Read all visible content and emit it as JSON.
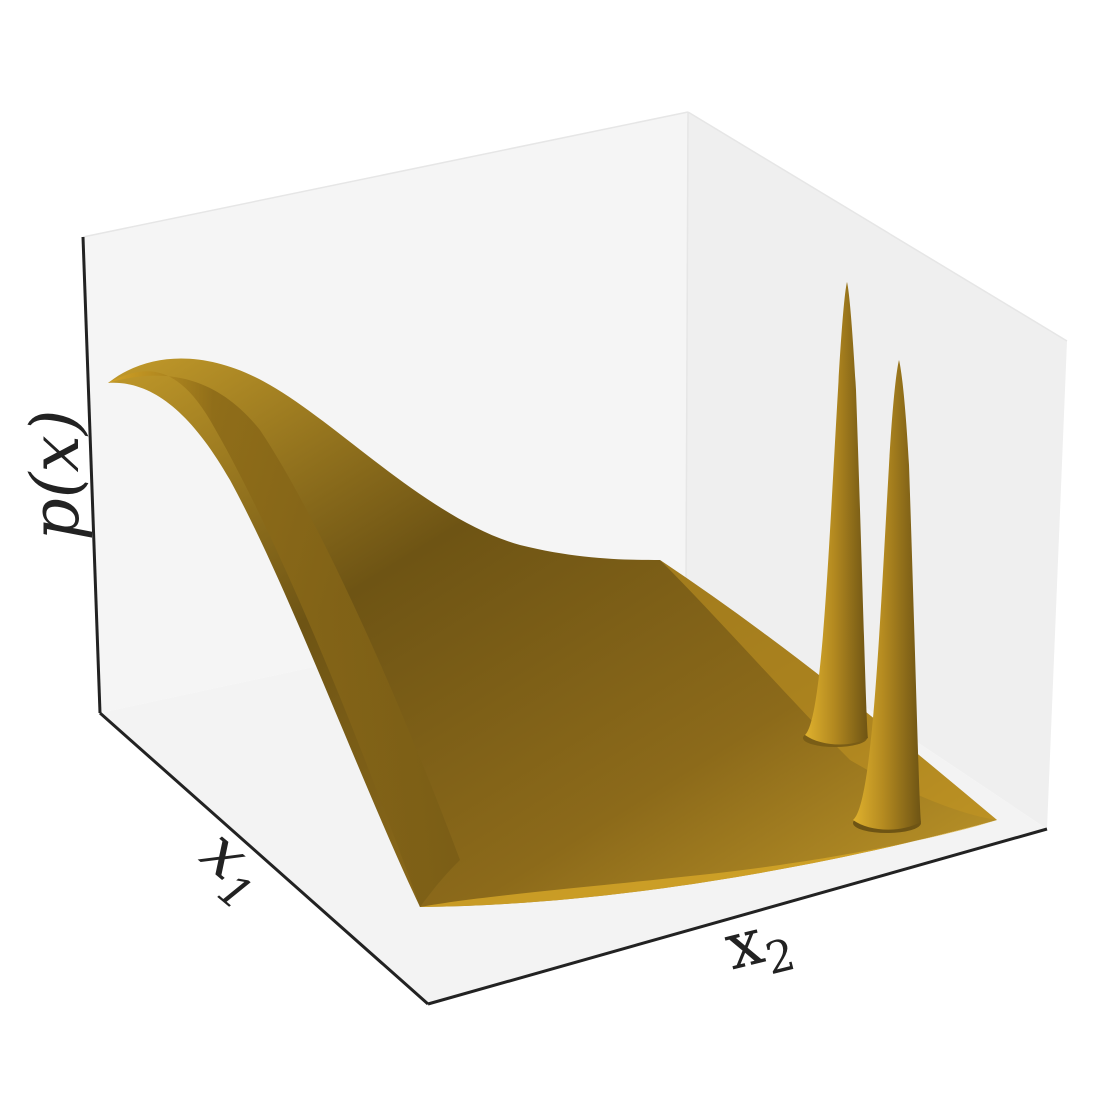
{
  "chart_data": {
    "type": "surface3d",
    "title": "",
    "axes": {
      "x1": {
        "label_main": "x",
        "label_sub": "1"
      },
      "x2": {
        "label_main": "x",
        "label_sub": "2"
      },
      "z": {
        "label": "p(x)"
      }
    },
    "ticks": "none",
    "grid": false,
    "surface": {
      "description_terms": [
        {
          "kind": "broad-ridge",
          "role": "smooth background density"
        },
        {
          "kind": "narrow-peak",
          "role": "first sharp mode"
        },
        {
          "kind": "narrow-peak",
          "role": "second sharp mode"
        }
      ]
    },
    "colors": {
      "surface": "#a37d1c",
      "surface_dark": "#6e5414",
      "surface_light": "#c9971f",
      "pane": "#f3f3f3",
      "axis": "#222222"
    }
  }
}
